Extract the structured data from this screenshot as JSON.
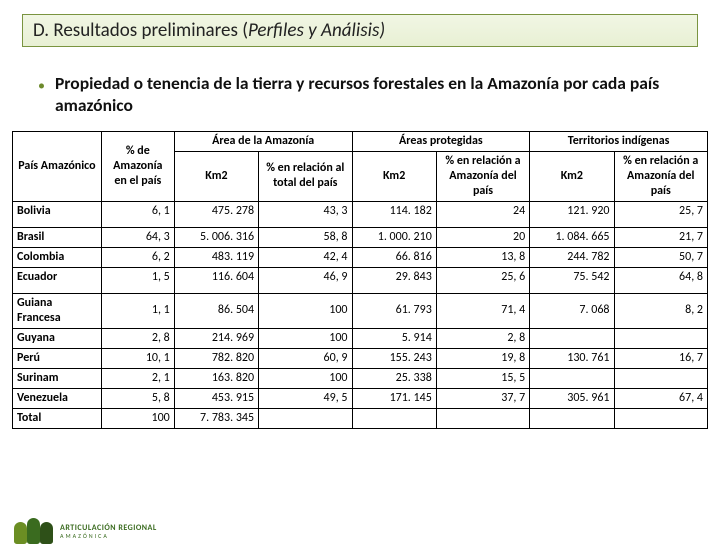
{
  "title": {
    "prefix": "D.  Resultados preliminares (",
    "italic": "Perfiles y Análisis)",
    "suffix": ""
  },
  "bullet": "Propiedad o tenencia de la tierra y recursos forestales en la Amazonía por cada país amazónico",
  "table": {
    "group_headers": {
      "area_amazonia": "Área de la Amazonía",
      "areas_protegidas": "Áreas protegidas",
      "territorios_indigenas": "Territorios indígenas"
    },
    "col_headers": {
      "pais": "País Amazónico",
      "pct_amazonia": "% de Amazonía en el país",
      "km2_a": "Km2",
      "rel_a": "% en relación al total del país",
      "km2_b": "Km2",
      "rel_b": "% en relación a Amazonía del país",
      "km2_c": "Km2",
      "rel_c": "% en relación a Amazonía del país"
    },
    "rows": [
      {
        "pais": "Bolivia",
        "pct": "6, 1",
        "km_a": "475. 278",
        "rel_a": "43, 3",
        "km_b": "114. 182",
        "rel_b": "24",
        "km_c": "121. 920",
        "rel_c": "25, 7"
      },
      {
        "pais": "Brasil",
        "pct": "64, 3",
        "km_a": "5. 006. 316",
        "rel_a": "58, 8",
        "km_b": "1. 000. 210",
        "rel_b": "20",
        "km_c": "1. 084. 665",
        "rel_c": "21, 7"
      },
      {
        "pais": "Colombia",
        "pct": "6, 2",
        "km_a": "483. 119",
        "rel_a": "42, 4",
        "km_b": "66. 816",
        "rel_b": "13, 8",
        "km_c": "244. 782",
        "rel_c": "50, 7"
      },
      {
        "pais": "Ecuador",
        "pct": "1, 5",
        "km_a": "116. 604",
        "rel_a": "46, 9",
        "km_b": "29. 843",
        "rel_b": "25, 6",
        "km_c": "75. 542",
        "rel_c": "64, 8"
      },
      {
        "pais": "Guiana Francesa",
        "pct": "1, 1",
        "km_a": "86. 504",
        "rel_a": "100",
        "km_b": "61. 793",
        "rel_b": "71, 4",
        "km_c": "7. 068",
        "rel_c": "8, 2"
      },
      {
        "pais": "Guyana",
        "pct": "2, 8",
        "km_a": "214. 969",
        "rel_a": "100",
        "km_b": "5. 914",
        "rel_b": "2, 8",
        "km_c": "",
        "rel_c": ""
      },
      {
        "pais": "Perú",
        "pct": "10, 1",
        "km_a": "782. 820",
        "rel_a": "60, 9",
        "km_b": "155. 243",
        "rel_b": "19, 8",
        "km_c": "130. 761",
        "rel_c": "16, 7"
      },
      {
        "pais": "Surinam",
        "pct": "2, 1",
        "km_a": "163. 820",
        "rel_a": "100",
        "km_b": "25. 338",
        "rel_b": "15, 5",
        "km_c": "",
        "rel_c": ""
      },
      {
        "pais": "Venezuela",
        "pct": "5, 8",
        "km_a": "453. 915",
        "rel_a": "49, 5",
        "km_b": "171. 145",
        "rel_b": "37, 7",
        "km_c": "305. 961",
        "rel_c": "67, 4"
      },
      {
        "pais": "Total",
        "pct": "100",
        "km_a": "7. 783. 345",
        "rel_a": "",
        "km_b": "",
        "rel_b": "",
        "km_c": "",
        "rel_c": ""
      }
    ]
  },
  "logo": {
    "colors": [
      "#6b8e23",
      "#3a6b1f",
      "#2e5018"
    ],
    "text_line1": "ARTICULACIÓN REGIONAL",
    "text_line2": "AMAZÓNICA",
    "text_color": "#3a6b1f"
  }
}
